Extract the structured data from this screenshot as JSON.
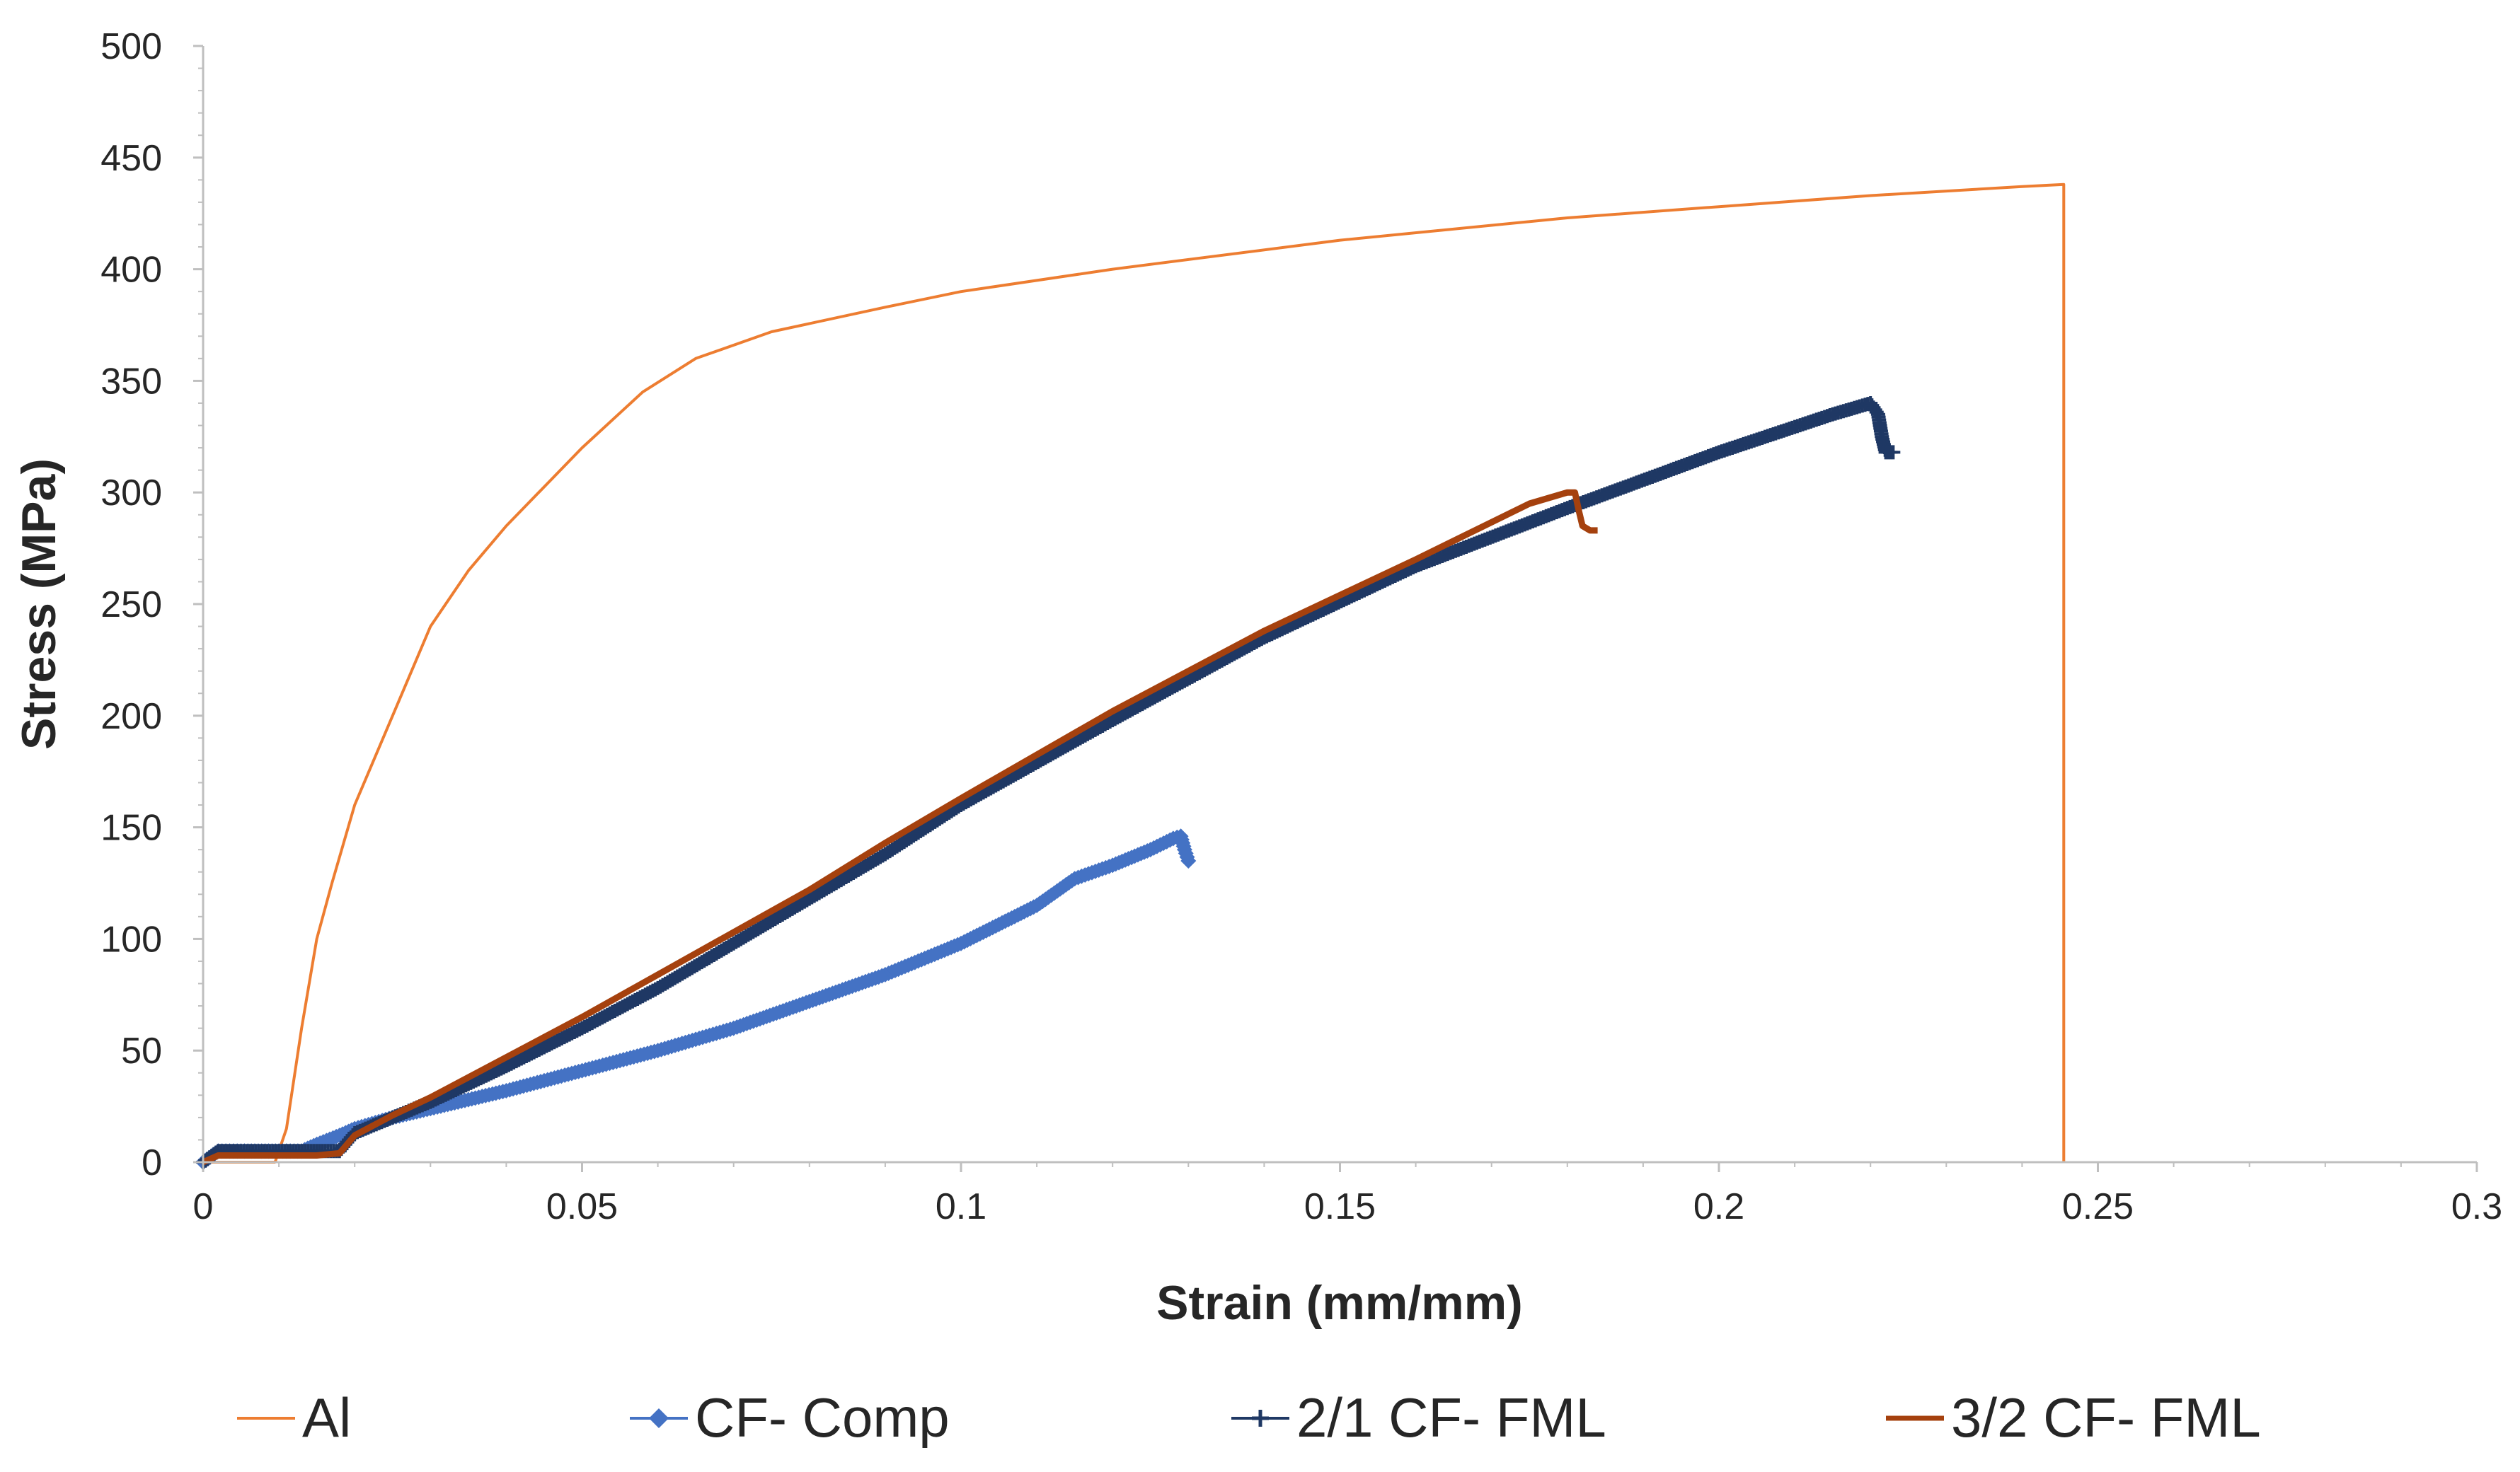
{
  "chart_data": {
    "type": "line",
    "title": "",
    "xlabel": "Strain (mm/mm)",
    "ylabel": "Stress (MPa)",
    "xlim": [
      0,
      0.3
    ],
    "ylim": [
      0,
      500
    ],
    "xticks": [
      0,
      0.05,
      0.1,
      0.15,
      0.2,
      0.25,
      0.3
    ],
    "xtick_labels": [
      "0",
      "0.05",
      "0.1",
      "0.15",
      "0.2",
      "0.25",
      "0.3"
    ],
    "yticks": [
      0,
      50,
      100,
      150,
      200,
      250,
      300,
      350,
      400,
      450,
      500
    ],
    "ytick_labels": [
      "0",
      "50",
      "100",
      "150",
      "200",
      "250",
      "300",
      "350",
      "400",
      "450",
      "500"
    ],
    "grid": false,
    "legend_position": "bottom",
    "series": [
      {
        "name": "Al",
        "color": "#ED7D31",
        "marker": "none",
        "points": [
          [
            0,
            0
          ],
          [
            0.0095,
            0
          ],
          [
            0.011,
            15
          ],
          [
            0.013,
            60
          ],
          [
            0.015,
            100
          ],
          [
            0.017,
            125
          ],
          [
            0.02,
            160
          ],
          [
            0.025,
            200
          ],
          [
            0.03,
            240
          ],
          [
            0.035,
            265
          ],
          [
            0.04,
            285
          ],
          [
            0.05,
            320
          ],
          [
            0.058,
            345
          ],
          [
            0.065,
            360
          ],
          [
            0.075,
            372
          ],
          [
            0.09,
            383
          ],
          [
            0.1,
            390
          ],
          [
            0.12,
            400
          ],
          [
            0.15,
            413
          ],
          [
            0.18,
            423
          ],
          [
            0.2,
            428
          ],
          [
            0.22,
            433
          ],
          [
            0.24,
            437
          ],
          [
            0.2455,
            438
          ],
          [
            0.2455,
            0
          ]
        ]
      },
      {
        "name": "CF- Comp",
        "color": "#4472C4",
        "marker": "diamond",
        "points": [
          [
            0,
            0
          ],
          [
            0.002,
            5
          ],
          [
            0.005,
            5
          ],
          [
            0.01,
            5
          ],
          [
            0.013,
            5
          ],
          [
            0.015,
            8
          ],
          [
            0.018,
            12
          ],
          [
            0.02,
            15
          ],
          [
            0.025,
            20
          ],
          [
            0.03,
            24
          ],
          [
            0.04,
            32
          ],
          [
            0.05,
            41
          ],
          [
            0.06,
            50
          ],
          [
            0.07,
            60
          ],
          [
            0.08,
            72
          ],
          [
            0.09,
            84
          ],
          [
            0.1,
            98
          ],
          [
            0.11,
            115
          ],
          [
            0.115,
            127
          ],
          [
            0.12,
            133
          ],
          [
            0.125,
            140
          ],
          [
            0.128,
            145
          ],
          [
            0.129,
            146
          ],
          [
            0.1295,
            140
          ],
          [
            0.13,
            135
          ]
        ]
      },
      {
        "name": "2/1 CF- FML",
        "color": "#1F3864",
        "marker": "plus",
        "points": [
          [
            0,
            0
          ],
          [
            0.002,
            5
          ],
          [
            0.005,
            5
          ],
          [
            0.01,
            5
          ],
          [
            0.015,
            5
          ],
          [
            0.018,
            5
          ],
          [
            0.02,
            13
          ],
          [
            0.025,
            20
          ],
          [
            0.03,
            27
          ],
          [
            0.04,
            43
          ],
          [
            0.05,
            60
          ],
          [
            0.06,
            78
          ],
          [
            0.07,
            98
          ],
          [
            0.08,
            118
          ],
          [
            0.09,
            138
          ],
          [
            0.1,
            160
          ],
          [
            0.12,
            198
          ],
          [
            0.14,
            235
          ],
          [
            0.16,
            267
          ],
          [
            0.18,
            293
          ],
          [
            0.2,
            318
          ],
          [
            0.215,
            335
          ],
          [
            0.22,
            340
          ],
          [
            0.221,
            335
          ],
          [
            0.2215,
            325
          ],
          [
            0.222,
            318
          ],
          [
            0.223,
            318
          ]
        ]
      },
      {
        "name": "3/2 CF- FML",
        "color": "#A5410E",
        "marker": "none",
        "points": [
          [
            0,
            0
          ],
          [
            0.002,
            3
          ],
          [
            0.005,
            3
          ],
          [
            0.01,
            3
          ],
          [
            0.015,
            3
          ],
          [
            0.018,
            4
          ],
          [
            0.02,
            12
          ],
          [
            0.025,
            21
          ],
          [
            0.03,
            29
          ],
          [
            0.04,
            47
          ],
          [
            0.05,
            65
          ],
          [
            0.06,
            84
          ],
          [
            0.07,
            103
          ],
          [
            0.08,
            122
          ],
          [
            0.09,
            143
          ],
          [
            0.1,
            163
          ],
          [
            0.12,
            202
          ],
          [
            0.14,
            238
          ],
          [
            0.16,
            270
          ],
          [
            0.175,
            295
          ],
          [
            0.18,
            300
          ],
          [
            0.181,
            300
          ],
          [
            0.1815,
            292
          ],
          [
            0.182,
            285
          ],
          [
            0.183,
            283
          ],
          [
            0.184,
            283
          ]
        ]
      }
    ]
  }
}
